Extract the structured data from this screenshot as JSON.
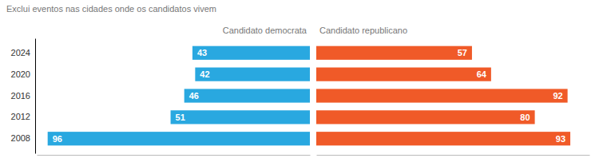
{
  "chart_data": {
    "type": "bar",
    "orientation": "horizontal",
    "subtitle": "Exclui eventos nas cidades onde os candidatos vivem",
    "categories": [
      "2024",
      "2020",
      "2016",
      "2012",
      "2008"
    ],
    "series": [
      {
        "name": "Candidato democrata",
        "color": "#29A8E0",
        "values": [
          43,
          42,
          46,
          51,
          96
        ]
      },
      {
        "name": "Candidato republicano",
        "color": "#F05A28",
        "values": [
          57,
          64,
          92,
          80,
          93
        ]
      }
    ],
    "xlim": [
      0,
      100
    ],
    "data_labels": true,
    "tick_labels": "y",
    "grid": false
  }
}
